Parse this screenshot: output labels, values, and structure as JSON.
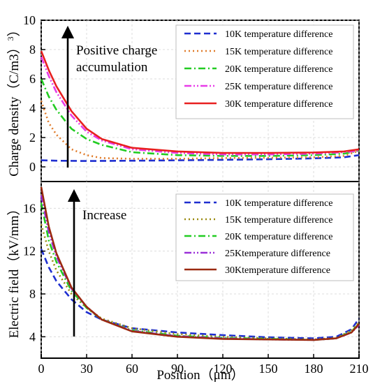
{
  "chart_data": [
    {
      "type": "line",
      "ylabel": "Charge density（C/m3）",
      "ylim": [
        -1,
        10
      ],
      "xlim": [
        0,
        210
      ],
      "yticks": [
        0,
        2,
        4,
        6,
        8,
        10
      ],
      "grid": true,
      "legend_position": "top-right",
      "annotation": [
        "Positive charge",
        "accumulation"
      ],
      "series": [
        {
          "name": "10K temperature difference",
          "color": "#1f2fd0",
          "dash": "dash",
          "x": [
            0,
            10,
            30,
            60,
            90,
            120,
            150,
            180,
            200,
            210
          ],
          "y": [
            0.45,
            0.42,
            0.4,
            0.42,
            0.45,
            0.48,
            0.52,
            0.58,
            0.65,
            0.8
          ]
        },
        {
          "name": "15K temperature difference",
          "color": "#e07b2a",
          "dash": "dot",
          "x": [
            0,
            5,
            10,
            20,
            30,
            40,
            60,
            90,
            120,
            150,
            180,
            200,
            210
          ],
          "y": [
            4.5,
            3.0,
            2.2,
            1.2,
            0.8,
            0.6,
            0.55,
            0.55,
            0.6,
            0.62,
            0.65,
            0.75,
            1.1
          ]
        },
        {
          "name": "20K temperature difference",
          "color": "#22cc22",
          "dash": "dashdot",
          "x": [
            0,
            5,
            10,
            20,
            30,
            40,
            60,
            90,
            120,
            150,
            180,
            200,
            210
          ],
          "y": [
            6.0,
            4.8,
            3.9,
            2.6,
            1.9,
            1.5,
            1.0,
            0.8,
            0.75,
            0.75,
            0.8,
            0.9,
            1.1
          ]
        },
        {
          "name": "25K temperature difference",
          "color": "#e83ce8",
          "dash": "dashdotdot",
          "x": [
            0,
            5,
            10,
            20,
            30,
            40,
            60,
            90,
            120,
            150,
            180,
            200,
            210
          ],
          "y": [
            7.5,
            6.2,
            5.1,
            3.5,
            2.4,
            1.8,
            1.2,
            0.95,
            0.85,
            0.85,
            0.9,
            1.0,
            1.1
          ]
        },
        {
          "name": "30K temperature difference",
          "color": "#e82020",
          "dash": "solid",
          "x": [
            0,
            5,
            10,
            20,
            30,
            40,
            60,
            90,
            120,
            150,
            180,
            200,
            210
          ],
          "y": [
            7.9,
            6.6,
            5.5,
            3.8,
            2.6,
            1.9,
            1.3,
            1.05,
            0.95,
            0.95,
            0.98,
            1.05,
            1.2
          ]
        }
      ]
    },
    {
      "type": "line",
      "xlabel": "Position（μm）",
      "ylabel": "Electric field（kV/mm）",
      "ylim": [
        2,
        18.5
      ],
      "xlim": [
        0,
        210
      ],
      "yticks": [
        4,
        8,
        12,
        16
      ],
      "xticks": [
        0,
        30,
        60,
        90,
        120,
        150,
        180,
        210
      ],
      "grid": true,
      "legend_position": "top-right",
      "annotation": [
        "Increase"
      ],
      "series": [
        {
          "name": "10K temperature difference",
          "color": "#1f2fd0",
          "dash": "dash",
          "x": [
            0,
            5,
            10,
            20,
            30,
            40,
            60,
            90,
            120,
            150,
            180,
            195,
            205,
            210
          ],
          "y": [
            12.2,
            10.5,
            9.2,
            7.5,
            6.3,
            5.6,
            4.8,
            4.4,
            4.15,
            3.95,
            3.85,
            4.0,
            4.7,
            5.7
          ]
        },
        {
          "name": "15K temperature difference",
          "color": "#9a8a10",
          "dash": "dot",
          "x": [
            0,
            5,
            10,
            20,
            30,
            40,
            60,
            90,
            120,
            150,
            180,
            195,
            205,
            210
          ],
          "y": [
            14.5,
            12.0,
            10.2,
            8.0,
            6.7,
            5.7,
            4.8,
            4.25,
            4.0,
            3.85,
            3.75,
            3.9,
            4.6,
            5.4
          ]
        },
        {
          "name": "20K temperature difference",
          "color": "#22cc22",
          "dash": "dashdot",
          "x": [
            0,
            5,
            10,
            20,
            30,
            40,
            60,
            90,
            120,
            150,
            180,
            195,
            205,
            210
          ],
          "y": [
            16.5,
            13.0,
            11.0,
            8.3,
            6.7,
            5.6,
            4.6,
            4.1,
            3.9,
            3.8,
            3.7,
            3.85,
            4.5,
            5.2
          ]
        },
        {
          "name": "25Ktemperature difference",
          "color": "#9b30d8",
          "dash": "dashdotdot",
          "x": [
            0,
            5,
            10,
            20,
            30,
            40,
            60,
            90,
            120,
            150,
            180,
            195,
            205,
            210
          ],
          "y": [
            17.2,
            13.8,
            11.5,
            8.5,
            6.8,
            5.6,
            4.55,
            4.05,
            3.85,
            3.75,
            3.7,
            3.85,
            4.4,
            5.1
          ]
        },
        {
          "name": "30Ktemperature difference",
          "color": "#9b2a10",
          "dash": "solid",
          "x": [
            0,
            5,
            10,
            20,
            30,
            40,
            60,
            90,
            120,
            150,
            180,
            195,
            205,
            210
          ],
          "y": [
            18.0,
            14.3,
            11.8,
            8.6,
            6.8,
            5.6,
            4.5,
            4.0,
            3.8,
            3.75,
            3.7,
            3.85,
            4.4,
            5.2
          ]
        }
      ]
    }
  ]
}
